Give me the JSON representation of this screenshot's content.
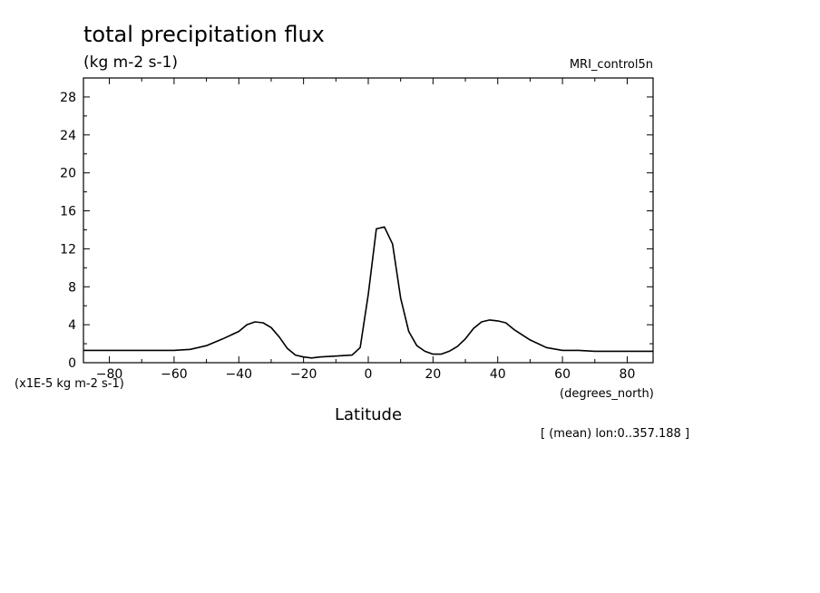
{
  "chart_data": {
    "type": "line",
    "title": "total precipitation flux",
    "subtitle": "(kg m-2 s-1)",
    "dataset_label": "MRI_control5n",
    "y_scale_label": "(x1E-5 kg m-2 s-1)",
    "x_unit_label": "(degrees_north)",
    "xlabel": "Latitude",
    "footnote": "[ (mean) lon:0..357.188 ]",
    "xlim": [
      -88,
      88
    ],
    "ylim": [
      0,
      30
    ],
    "xticks": [
      -80,
      -60,
      -40,
      -20,
      0,
      20,
      40,
      60,
      80
    ],
    "yticks": [
      0,
      4,
      8,
      12,
      16,
      20,
      24,
      28
    ],
    "grid": false,
    "series": [
      {
        "x": [
          -88,
          -80,
          -70,
          -60,
          -55,
          -50,
          -45,
          -40,
          -37.5,
          -35,
          -32.5,
          -30,
          -27.5,
          -25,
          -22.5,
          -20,
          -17.5,
          -15,
          -10,
          -5,
          -2.5,
          0,
          2.5,
          5,
          7.5,
          10,
          12.5,
          15,
          17.5,
          20,
          22.5,
          25,
          27.5,
          30,
          32.5,
          35,
          37.5,
          40,
          42.5,
          45,
          50,
          55,
          60,
          65,
          70,
          80,
          88
        ],
        "y": [
          1.3,
          1.3,
          1.3,
          1.3,
          1.4,
          1.8,
          2.5,
          3.3,
          4.0,
          4.3,
          4.2,
          3.7,
          2.7,
          1.5,
          0.8,
          0.6,
          0.5,
          0.6,
          0.7,
          0.8,
          1.6,
          7.2,
          14.1,
          14.3,
          12.5,
          6.8,
          3.3,
          1.8,
          1.2,
          0.9,
          0.9,
          1.2,
          1.7,
          2.5,
          3.6,
          4.3,
          4.5,
          4.4,
          4.2,
          3.5,
          2.4,
          1.6,
          1.3,
          1.3,
          1.2,
          1.2,
          1.2
        ]
      }
    ]
  }
}
